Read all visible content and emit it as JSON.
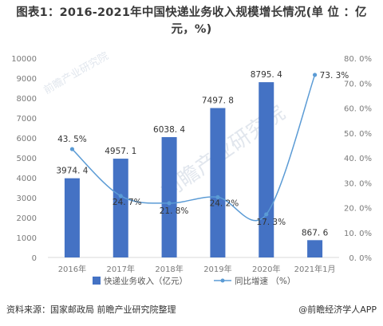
{
  "title": "图表1：2016-2021年中国快递业务收入规模增长情况(单 位 ：亿元，%)",
  "watermark": "前瞻产业研究院",
  "source": "资料来源：国家邮政局 前瞻产业研究院整理",
  "brand": "@前瞻经济学人APP",
  "colors": {
    "bar": "#4472c4",
    "line": "#5b9bd5",
    "axis": "#d9d9d9"
  },
  "chart_data": {
    "type": "bar",
    "categories": [
      "2016年",
      "2017年",
      "2018年",
      "2019年",
      "2020年",
      "2021年1月"
    ],
    "series": [
      {
        "name": "快递业务收入（亿元）",
        "type": "bar",
        "axis": "left",
        "values": [
          3974.4,
          4957.1,
          6038.4,
          7497.8,
          8795.4,
          867.6
        ],
        "labels": [
          "3974. 4",
          "4957. 1",
          "6038. 4",
          "7497. 8",
          "8795. 4",
          "867. 6"
        ]
      },
      {
        "name": "同比增速 （%）",
        "type": "line",
        "axis": "right",
        "values": [
          43.5,
          24.7,
          21.8,
          24.2,
          17.3,
          73.3
        ],
        "labels": [
          "43. 5%",
          "24. 7%",
          "21. 8%",
          "24. 2%",
          "17. 3%",
          "73. 3%"
        ]
      }
    ],
    "ylim_left": [
      0,
      10000
    ],
    "ylim_right": [
      0,
      80
    ],
    "yticks_left": [
      "0",
      "1000",
      "2000",
      "3000",
      "4000",
      "5000",
      "6000",
      "7000",
      "8000",
      "9000",
      "10000"
    ],
    "yticks_right": [
      "0. 0%",
      "10. 0%",
      "20. 0%",
      "30. 0%",
      "40. 0%",
      "50. 0%",
      "60. 0%",
      "70. 0%",
      "80. 0%"
    ],
    "legend_position": "bottom",
    "grid": false
  }
}
